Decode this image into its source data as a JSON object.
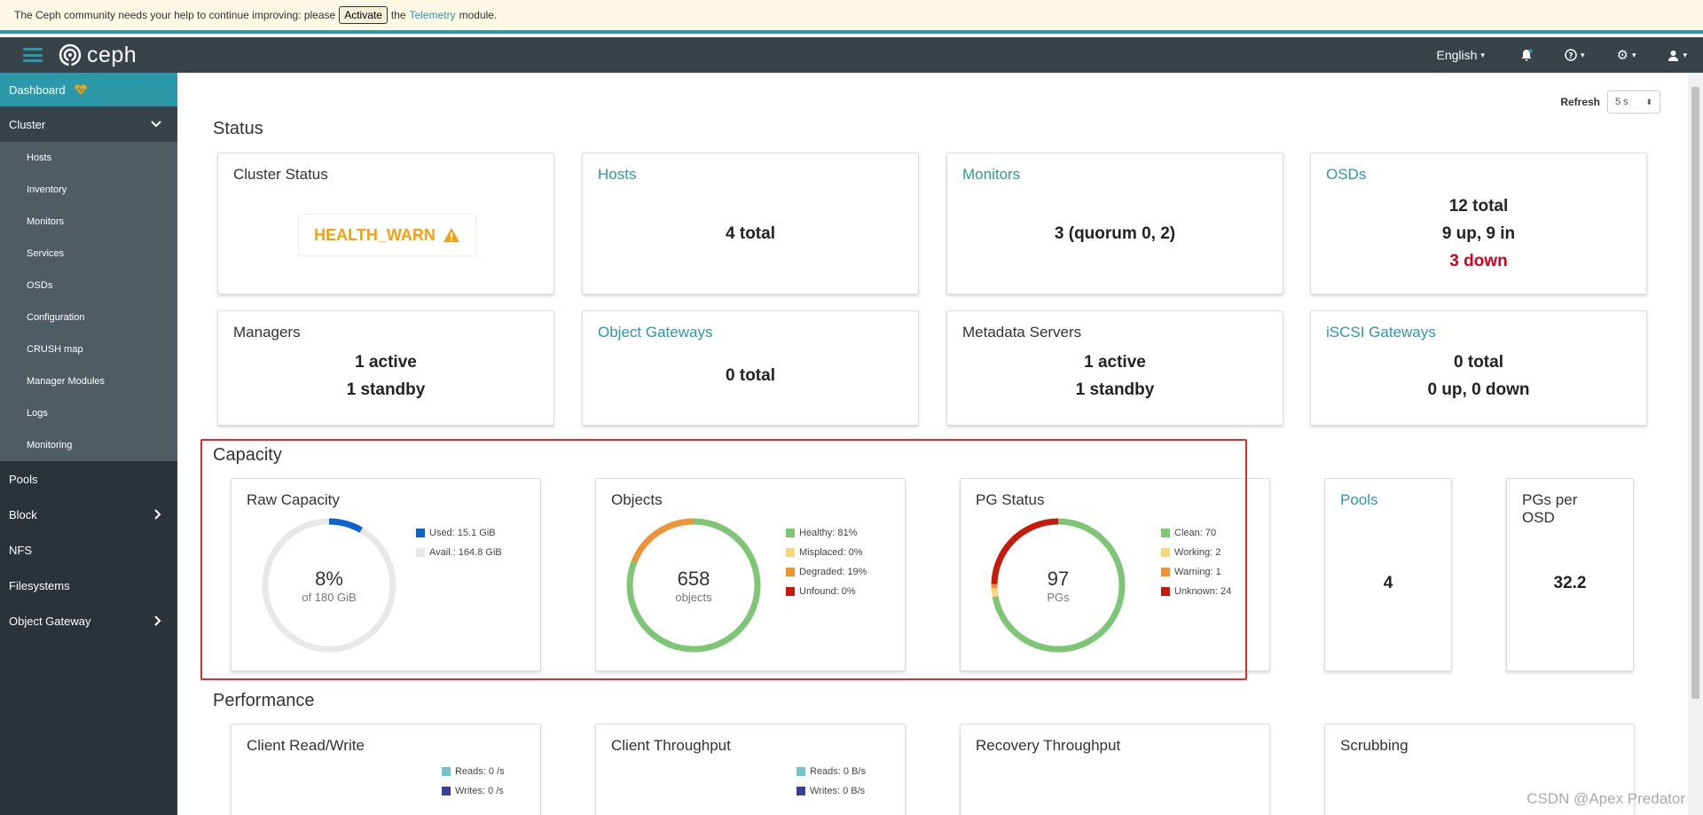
{
  "banner": {
    "text_before": "The Ceph community needs your help to continue improving: please",
    "activate_label": "Activate",
    "text_the": "the",
    "telemetry_link": "Telemetry",
    "text_after": "module."
  },
  "navbar": {
    "brand": "ceph",
    "language": "English",
    "icons": [
      "bell-icon",
      "help-icon",
      "gear-icon",
      "user-icon"
    ]
  },
  "sidebar": {
    "dashboard": "Dashboard",
    "cluster": "Cluster",
    "cluster_items": [
      "Hosts",
      "Inventory",
      "Monitors",
      "Services",
      "OSDs",
      "Configuration",
      "CRUSH map",
      "Manager Modules",
      "Logs",
      "Monitoring"
    ],
    "pools": "Pools",
    "block": "Block",
    "nfs": "NFS",
    "filesystems": "Filesystems",
    "object_gateway": "Object Gateway"
  },
  "refresh": {
    "label": "Refresh",
    "value": "5 s"
  },
  "status": {
    "title": "Status",
    "cluster_status": {
      "title": "Cluster Status",
      "value": "HEALTH_WARN"
    },
    "hosts": {
      "title": "Hosts",
      "value": "4 total"
    },
    "monitors": {
      "title": "Monitors",
      "value": "3 (quorum 0, 2)"
    },
    "osds": {
      "title": "OSDs",
      "total": "12 total",
      "up_in": "9 up, 9 in",
      "down": "3 down"
    },
    "managers": {
      "title": "Managers",
      "active": "1 active",
      "standby": "1 standby"
    },
    "object_gateways": {
      "title": "Object Gateways",
      "value": "0 total"
    },
    "metadata_servers": {
      "title": "Metadata Servers",
      "active": "1 active",
      "standby": "1 standby"
    },
    "iscsi_gateways": {
      "title": "iSCSI Gateways",
      "total": "0 total",
      "updown": "0 up, 0 down"
    }
  },
  "capacity": {
    "title": "Capacity",
    "raw_capacity": {
      "title": "Raw Capacity",
      "center_big": "8%",
      "center_small": "of 180 GiB",
      "legend": [
        "Used: 15.1 GiB",
        "Avail.: 164.8 GiB"
      ]
    },
    "objects": {
      "title": "Objects",
      "center_big": "658",
      "center_small": "objects",
      "legend": [
        "Healthy: 81%",
        "Misplaced: 0%",
        "Degraded: 19%",
        "Unfound: 0%"
      ]
    },
    "pg_status": {
      "title": "PG Status",
      "center_big": "97",
      "center_small": "PGs",
      "legend": [
        "Clean: 70",
        "Working: 2",
        "Warning: 1",
        "Unknown: 24"
      ]
    },
    "pools": {
      "title": "Pools",
      "value": "4"
    },
    "pgs_per_osd": {
      "title_line1": "PGs per",
      "title_line2": "OSD",
      "value": "32.2"
    }
  },
  "performance": {
    "title": "Performance",
    "client_rw": {
      "title": "Client Read/Write",
      "legend": [
        "Reads: 0 /s",
        "Writes: 0 /s"
      ]
    },
    "client_throughput": {
      "title": "Client Throughput",
      "legend": [
        "Reads: 0 B/s",
        "Writes: 0 B/s"
      ]
    },
    "recovery_throughput": {
      "title": "Recovery Throughput"
    },
    "scrubbing": {
      "title": "Scrubbing"
    }
  },
  "colors": {
    "accent": "#2b99a8",
    "used": "#0b62d1",
    "avail": "#e8e8e8",
    "healthy": "#7cc674",
    "misplaced": "#f9d67a",
    "degraded": "#ef9234",
    "unfound": "#c9190b",
    "warn": "#f5a10c",
    "reads": "#73c5c5",
    "writes": "#393f9c"
  },
  "chart_data": [
    {
      "type": "pie",
      "title": "Raw Capacity",
      "labels": [
        "Used",
        "Avail."
      ],
      "values": [
        15.1,
        164.8
      ]
    },
    {
      "type": "pie",
      "title": "Objects",
      "labels": [
        "Healthy",
        "Misplaced",
        "Degraded",
        "Unfound"
      ],
      "values": [
        81,
        0,
        19,
        0
      ]
    },
    {
      "type": "pie",
      "title": "PG Status",
      "labels": [
        "Clean",
        "Working",
        "Warning",
        "Unknown"
      ],
      "values": [
        70,
        2,
        1,
        24
      ]
    }
  ],
  "watermark": "CSDN @Apex   Predator"
}
